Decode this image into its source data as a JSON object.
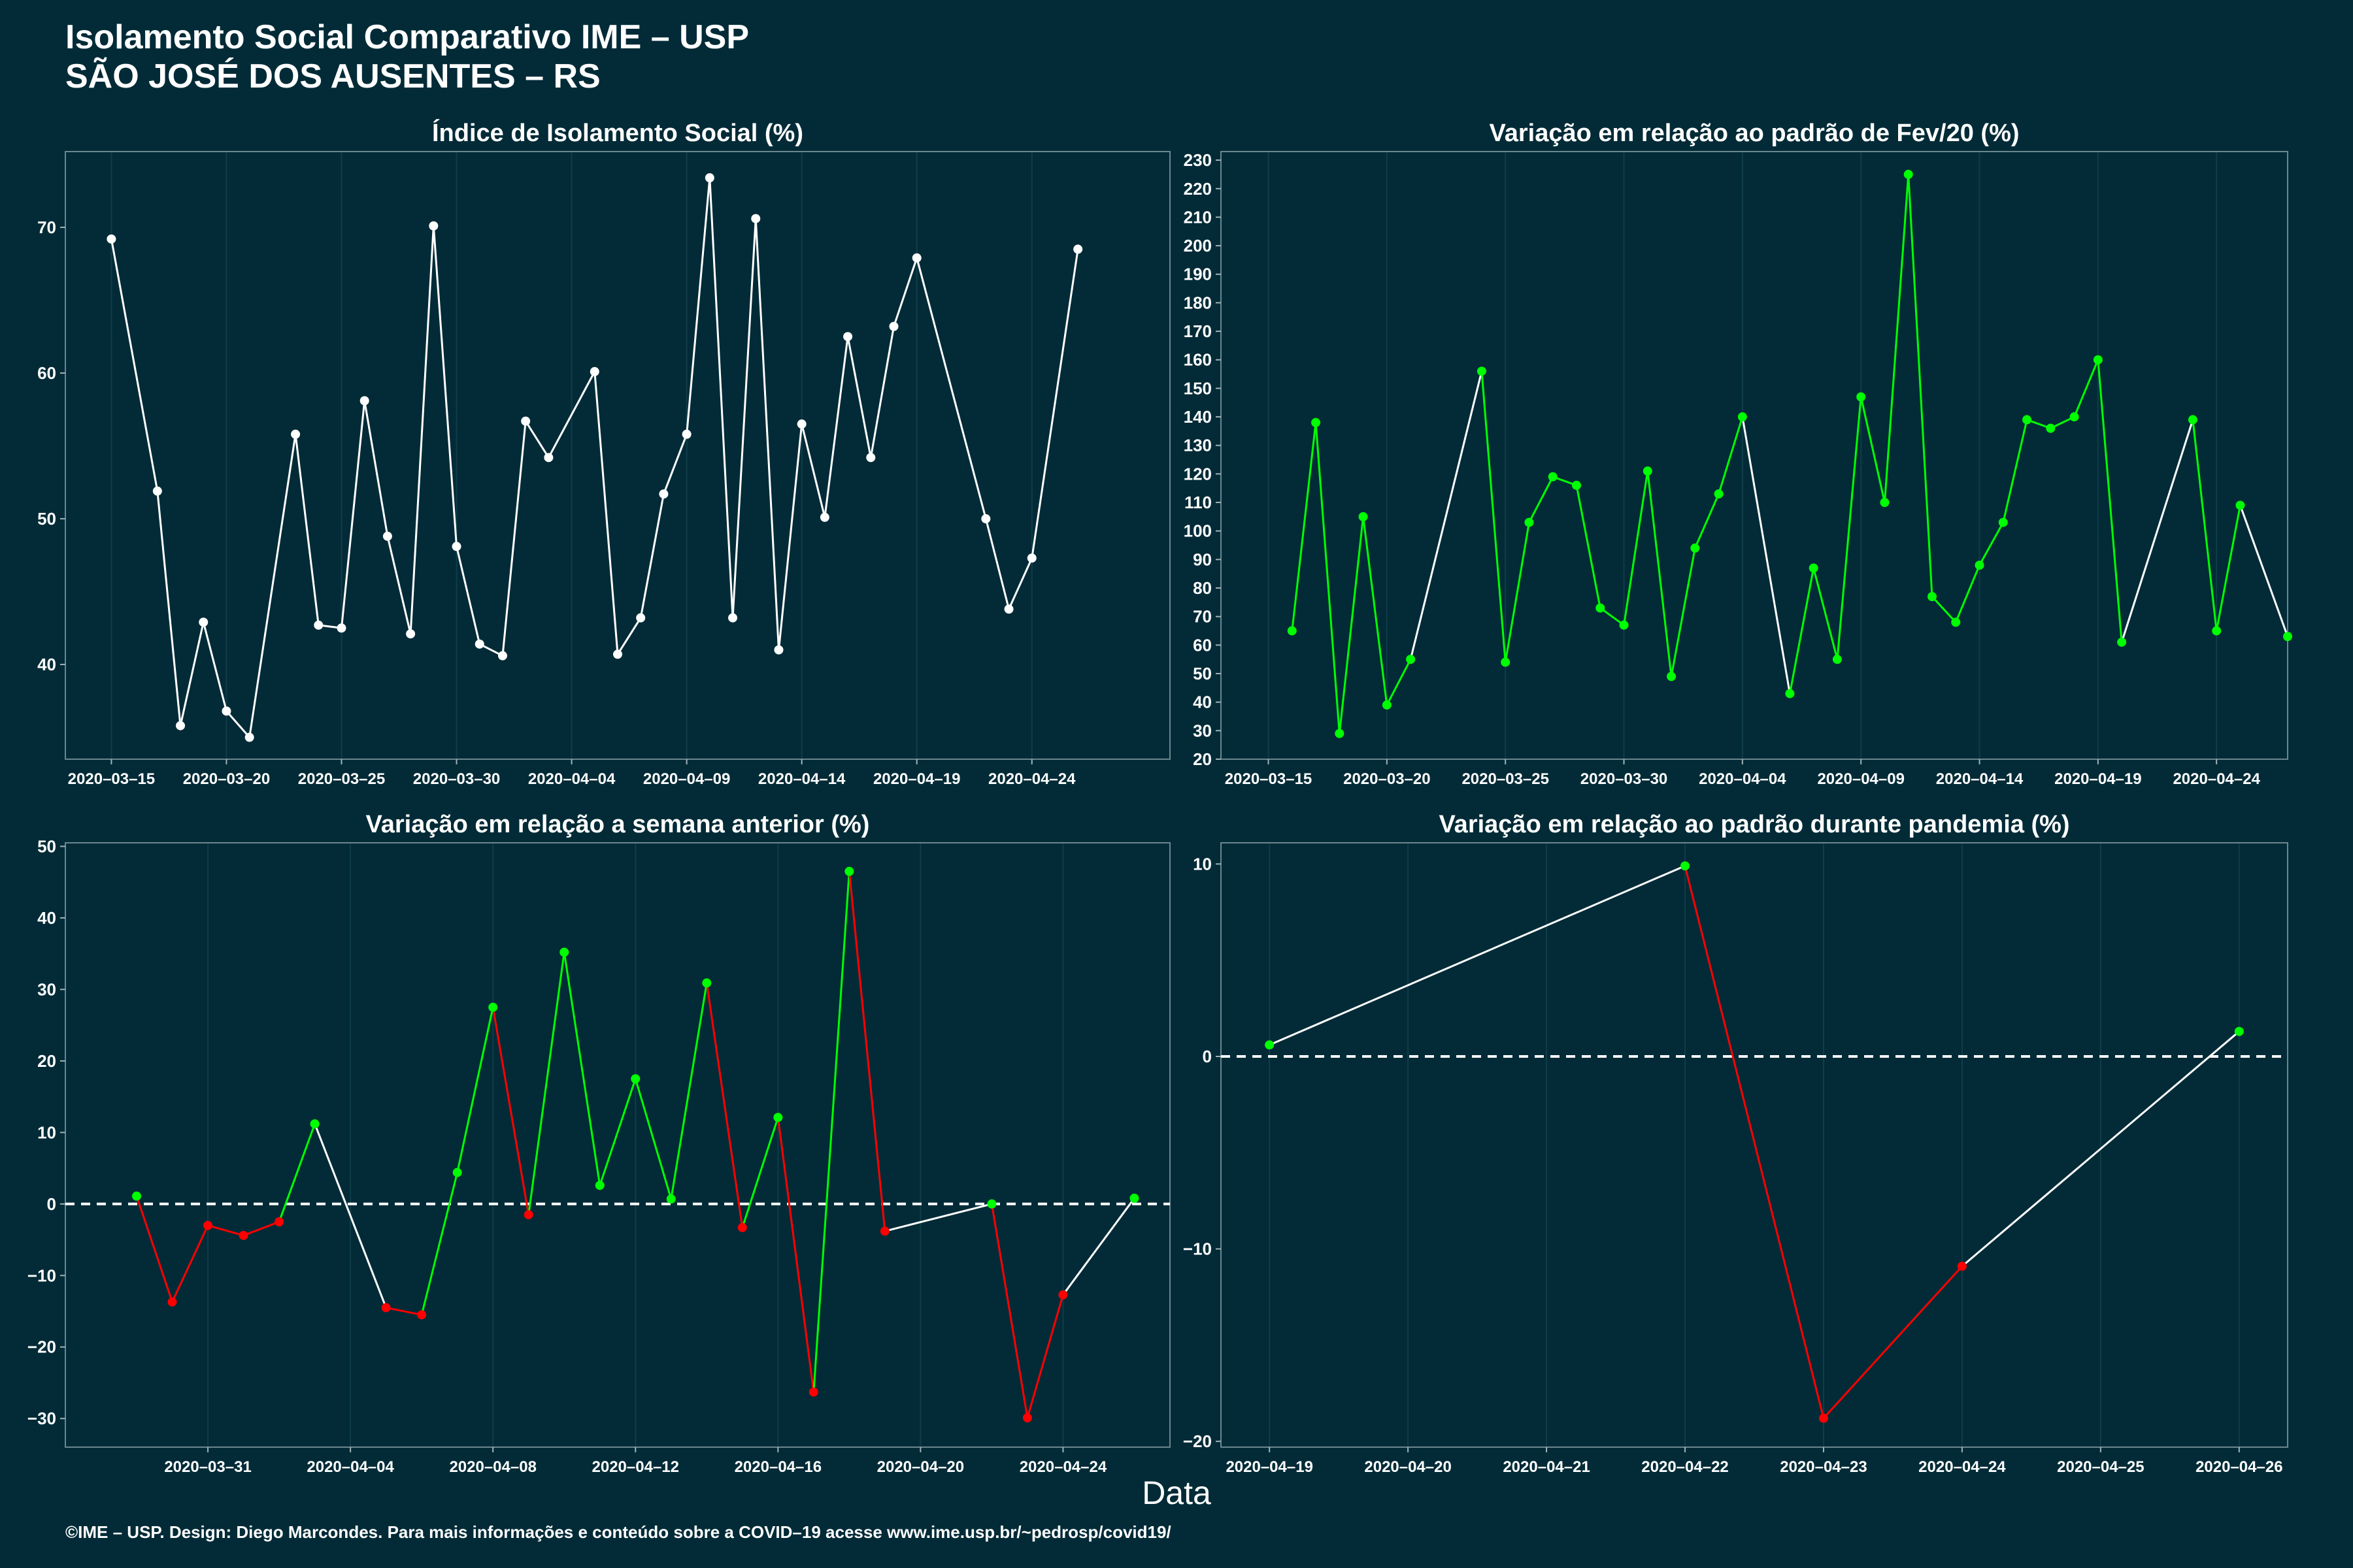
{
  "header": {
    "title_line1": "Isolamento Social Comparativo IME – USP",
    "title_line2": "SÃO JOSÉ DOS AUSENTES – RS"
  },
  "x_axis_label": "Data",
  "footer": "©IME – USP. Design: Diego Marcondes. Para mais informações e conteúdo sobre a COVID–19 acesse www.ime.usp.br/~pedrosp/covid19/",
  "colors": {
    "background": "#022b37",
    "line": "#ffffff",
    "up": "#00ff00",
    "down": "#ff0000",
    "grid": "#0f3d48"
  },
  "chart_data": [
    {
      "type": "line",
      "title": "Índice de Isolamento Social (%)",
      "x_type": "date",
      "xlim": [
        "2020-03-13",
        "2020-04-30"
      ],
      "ylim": [
        33.5,
        75.2
      ],
      "x_ticks": [
        "2020-03-15",
        "2020-03-20",
        "2020-03-25",
        "2020-03-30",
        "2020-04-04",
        "2020-04-09",
        "2020-04-14",
        "2020-04-19",
        "2020-04-24"
      ],
      "y_ticks": [
        40,
        50,
        60,
        70
      ],
      "zero_line": false,
      "points": [
        [
          "2020-03-15",
          69.2,
          "w"
        ],
        [
          "2020-03-17",
          51.9,
          "w"
        ],
        [
          "2020-03-18",
          35.8,
          "w"
        ],
        [
          "2020-03-19",
          42.9,
          "w"
        ],
        [
          "2020-03-20",
          36.8,
          "w"
        ],
        [
          "2020-03-21",
          35.0,
          "w"
        ],
        [
          "2020-03-23",
          55.8,
          "w"
        ],
        [
          "2020-03-24",
          42.7,
          "w"
        ],
        [
          "2020-03-25",
          42.5,
          "w"
        ],
        [
          "2020-03-26",
          58.1,
          "w"
        ],
        [
          "2020-03-27",
          48.8,
          "w"
        ],
        [
          "2020-03-28",
          42.1,
          "w"
        ],
        [
          "2020-03-29",
          70.1,
          "w"
        ],
        [
          "2020-03-30",
          48.1,
          "w"
        ],
        [
          "2020-03-31",
          41.4,
          "w"
        ],
        [
          "2020-04-01",
          40.6,
          "w"
        ],
        [
          "2020-04-02",
          56.7,
          "w"
        ],
        [
          "2020-04-03",
          54.2,
          "w"
        ],
        [
          "2020-04-05",
          60.1,
          "w"
        ],
        [
          "2020-04-06",
          40.7,
          "w"
        ],
        [
          "2020-04-07",
          43.2,
          "w"
        ],
        [
          "2020-04-08",
          51.7,
          "w"
        ],
        [
          "2020-04-09",
          55.8,
          "w"
        ],
        [
          "2020-04-10",
          73.4,
          "w"
        ],
        [
          "2020-04-11",
          43.2,
          "w"
        ],
        [
          "2020-04-12",
          70.6,
          "w"
        ],
        [
          "2020-04-13",
          41.0,
          "w"
        ],
        [
          "2020-04-14",
          56.5,
          "w"
        ],
        [
          "2020-04-15",
          50.1,
          "w"
        ],
        [
          "2020-04-16",
          62.5,
          "w"
        ],
        [
          "2020-04-17",
          54.2,
          "w"
        ],
        [
          "2020-04-18",
          63.2,
          "w"
        ],
        [
          "2020-04-19",
          67.9,
          "w"
        ],
        [
          "2020-04-22",
          50.0,
          "w"
        ],
        [
          "2020-04-23",
          43.8,
          "w"
        ],
        [
          "2020-04-24",
          47.3,
          "w"
        ],
        [
          "2020-04-26",
          68.5,
          "w"
        ]
      ]
    },
    {
      "type": "line",
      "title": "Variação em relação ao padrão de Fev/20 (%)",
      "x_type": "date",
      "xlim": [
        "2020-03-13",
        "2020-04-27"
      ],
      "ylim": [
        20,
        233
      ],
      "x_ticks": [
        "2020-03-15",
        "2020-03-20",
        "2020-03-25",
        "2020-03-30",
        "2020-04-04",
        "2020-04-09",
        "2020-04-14",
        "2020-04-19",
        "2020-04-24"
      ],
      "y_ticks": [
        20,
        30,
        40,
        50,
        60,
        70,
        80,
        90,
        100,
        110,
        120,
        130,
        140,
        150,
        160,
        170,
        180,
        190,
        200,
        210,
        220,
        230
      ],
      "zero_line": false,
      "points": [
        [
          "2020-03-16",
          65,
          "g"
        ],
        [
          "2020-03-17",
          138,
          "g"
        ],
        [
          "2020-03-18",
          29,
          "g"
        ],
        [
          "2020-03-19",
          105,
          "g"
        ],
        [
          "2020-03-20",
          39,
          "g"
        ],
        [
          "2020-03-21",
          55,
          "g"
        ],
        [
          "2020-03-24",
          156,
          "g"
        ],
        [
          "2020-03-25",
          54,
          "g"
        ],
        [
          "2020-03-26",
          103,
          "g"
        ],
        [
          "2020-03-27",
          119,
          "g"
        ],
        [
          "2020-03-28",
          116,
          "g"
        ],
        [
          "2020-03-29",
          73,
          "g"
        ],
        [
          "2020-03-30",
          67,
          "g"
        ],
        [
          "2020-03-31",
          121,
          "g"
        ],
        [
          "2020-04-01",
          49,
          "g"
        ],
        [
          "2020-04-02",
          94,
          "g"
        ],
        [
          "2020-04-03",
          113,
          "g"
        ],
        [
          "2020-04-04",
          140,
          "g"
        ],
        [
          "2020-04-06",
          43,
          "g"
        ],
        [
          "2020-04-07",
          87,
          "g"
        ],
        [
          "2020-04-08",
          55,
          "g"
        ],
        [
          "2020-04-09",
          147,
          "g"
        ],
        [
          "2020-04-10",
          110,
          "g"
        ],
        [
          "2020-04-11",
          225,
          "g"
        ],
        [
          "2020-04-12",
          77,
          "g"
        ],
        [
          "2020-04-13",
          68,
          "g"
        ],
        [
          "2020-04-14",
          88,
          "g"
        ],
        [
          "2020-04-15",
          103,
          "g"
        ],
        [
          "2020-04-16",
          139,
          "g"
        ],
        [
          "2020-04-17",
          136,
          "g"
        ],
        [
          "2020-04-18",
          140,
          "g"
        ],
        [
          "2020-04-19",
          160,
          "g"
        ],
        [
          "2020-04-20",
          61,
          "g"
        ],
        [
          "2020-04-23",
          139,
          "g"
        ],
        [
          "2020-04-24",
          65,
          "g"
        ],
        [
          "2020-04-25",
          109,
          "g"
        ],
        [
          "2020-04-27",
          63,
          "g"
        ]
      ]
    },
    {
      "type": "line",
      "title": "Variação em relação a semana anterior (%)",
      "x_type": "date",
      "xlim": [
        "2020-03-27",
        "2020-04-27"
      ],
      "ylim": [
        -34,
        50.5
      ],
      "x_ticks": [
        "2020-03-31",
        "2020-04-04",
        "2020-04-08",
        "2020-04-12",
        "2020-04-16",
        "2020-04-20",
        "2020-04-24"
      ],
      "y_ticks": [
        -30,
        -20,
        -10,
        0,
        10,
        20,
        30,
        40,
        50
      ],
      "zero_line": true,
      "points": [
        [
          "2020-03-29",
          1.1,
          "g"
        ],
        [
          "2020-03-30",
          -13.7,
          "r"
        ],
        [
          "2020-03-31",
          -3.0,
          "r"
        ],
        [
          "2020-04-01",
          -4.4,
          "r"
        ],
        [
          "2020-04-02",
          -2.5,
          "r"
        ],
        [
          "2020-04-03",
          11.2,
          "g"
        ],
        [
          "2020-04-05",
          -14.5,
          "r"
        ],
        [
          "2020-04-06",
          -15.5,
          "r"
        ],
        [
          "2020-04-07",
          4.4,
          "g"
        ],
        [
          "2020-04-08",
          27.5,
          "g"
        ],
        [
          "2020-04-09",
          -1.5,
          "r"
        ],
        [
          "2020-04-10",
          35.2,
          "g"
        ],
        [
          "2020-04-11",
          2.6,
          "g"
        ],
        [
          "2020-04-12",
          17.5,
          "g"
        ],
        [
          "2020-04-13",
          0.7,
          "g"
        ],
        [
          "2020-04-14",
          30.9,
          "g"
        ],
        [
          "2020-04-15",
          -3.3,
          "r"
        ],
        [
          "2020-04-16",
          12.1,
          "g"
        ],
        [
          "2020-04-17",
          -26.3,
          "r"
        ],
        [
          "2020-04-18",
          46.5,
          "g"
        ],
        [
          "2020-04-19",
          -3.8,
          "r"
        ],
        [
          "2020-04-22",
          0.0,
          "g"
        ],
        [
          "2020-04-23",
          -29.9,
          "r"
        ],
        [
          "2020-04-24",
          -12.7,
          "r"
        ],
        [
          "2020-04-26",
          0.8,
          "g"
        ]
      ]
    },
    {
      "type": "line",
      "title": "Variação em relação ao padrão durante pandemia (%)",
      "x_type": "date",
      "xlim": [
        "2020-04-18.65",
        "2020-04-26.35"
      ],
      "ylim": [
        -20.3,
        11.1
      ],
      "x_ticks": [
        "2020-04-19",
        "2020-04-20",
        "2020-04-21",
        "2020-04-22",
        "2020-04-23",
        "2020-04-24",
        "2020-04-25",
        "2020-04-26"
      ],
      "y_ticks": [
        -20,
        -10,
        0,
        10
      ],
      "zero_line": true,
      "points": [
        [
          "2020-04-19",
          0.6,
          "g"
        ],
        [
          "2020-04-22",
          9.9,
          "g"
        ],
        [
          "2020-04-23",
          -18.8,
          "r"
        ],
        [
          "2020-04-24",
          -10.9,
          "r"
        ],
        [
          "2020-04-26",
          1.3,
          "g"
        ]
      ]
    }
  ]
}
